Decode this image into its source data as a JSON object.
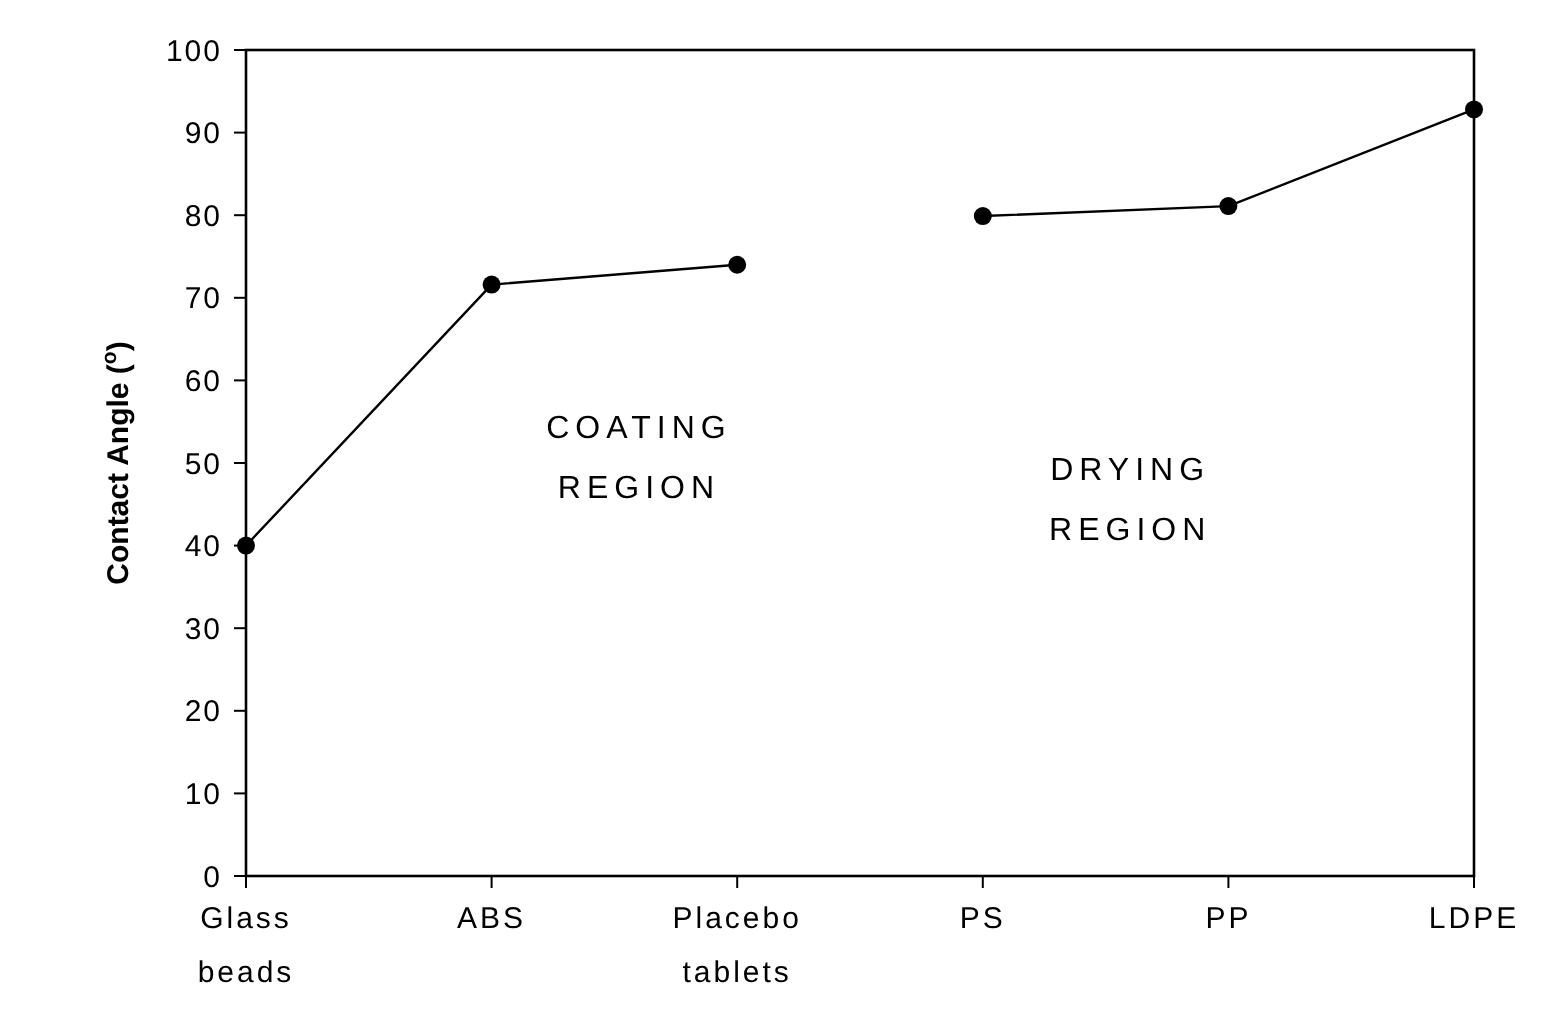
{
  "chart_data": {
    "type": "line",
    "ylabel": "Contact Angle ($^{o}$)",
    "categories": [
      "Glass beads",
      "ABS",
      "Placebo tablets",
      "PS",
      "PP",
      "LDPE"
    ],
    "series": [
      {
        "color": "#000000",
        "values": [
          40,
          71.6,
          74.0,
          null,
          null,
          null
        ]
      },
      {
        "color": "#000000",
        "values": [
          null,
          null,
          null,
          79.9,
          81.1,
          92.8
        ]
      }
    ],
    "ylim": [
      0,
      100
    ],
    "yticks": [
      0,
      10,
      20,
      30,
      40,
      50,
      60,
      70,
      80,
      90,
      100
    ],
    "marker": "circle",
    "line_style": "solid",
    "grid": false,
    "annotations": [
      "COATING\nREGION",
      "DRYING\nREGION"
    ]
  }
}
